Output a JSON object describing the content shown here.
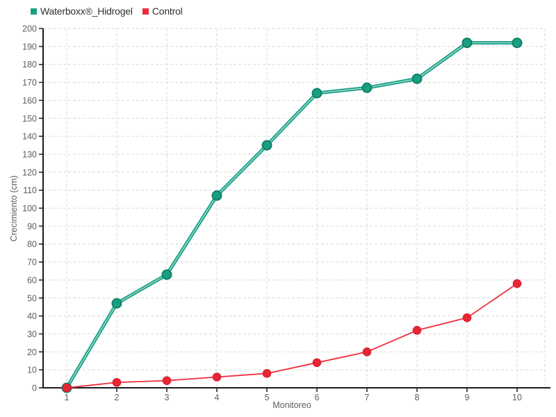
{
  "chart_data": {
    "type": "line",
    "title": "",
    "xlabel": "Monitoreo",
    "ylabel": "Crecimiento (cm)",
    "x": [
      1,
      2,
      3,
      4,
      5,
      6,
      7,
      8,
      9,
      10
    ],
    "x_tick_labels": [
      "1",
      "2",
      "3",
      "4",
      "5",
      "6",
      "7",
      "8",
      "9",
      "10"
    ],
    "ylim": [
      0,
      200
    ],
    "y_tick_step": 10,
    "grid": true,
    "legend_position": "top-left",
    "series": [
      {
        "name": "Waterboxx®_Hidrogel",
        "values": [
          0,
          47,
          63,
          107,
          135,
          164,
          167,
          172,
          192,
          192
        ],
        "color": "#19a185",
        "marker_fill": "#1a9e82",
        "marker_stroke": "#0f8165",
        "line_width": 5,
        "marker_radius": 6.5,
        "highlight_core": "#ffffff"
      },
      {
        "name": "Control",
        "values": [
          0,
          3,
          4,
          6,
          8,
          14,
          20,
          32,
          39,
          58
        ],
        "color": "#ee2c3c",
        "marker_fill": "#e92434",
        "marker_stroke": "#d21f30",
        "line_width": 1.8,
        "marker_radius": 5.8
      }
    ],
    "colors": {
      "background": "#ffffff",
      "axis": "#1b1b1b",
      "grid": "#d9d9d9",
      "tick_label": "#5e5e5e",
      "axis_title": "#5e5e5e",
      "legend_text": "#2f2f2f"
    }
  }
}
